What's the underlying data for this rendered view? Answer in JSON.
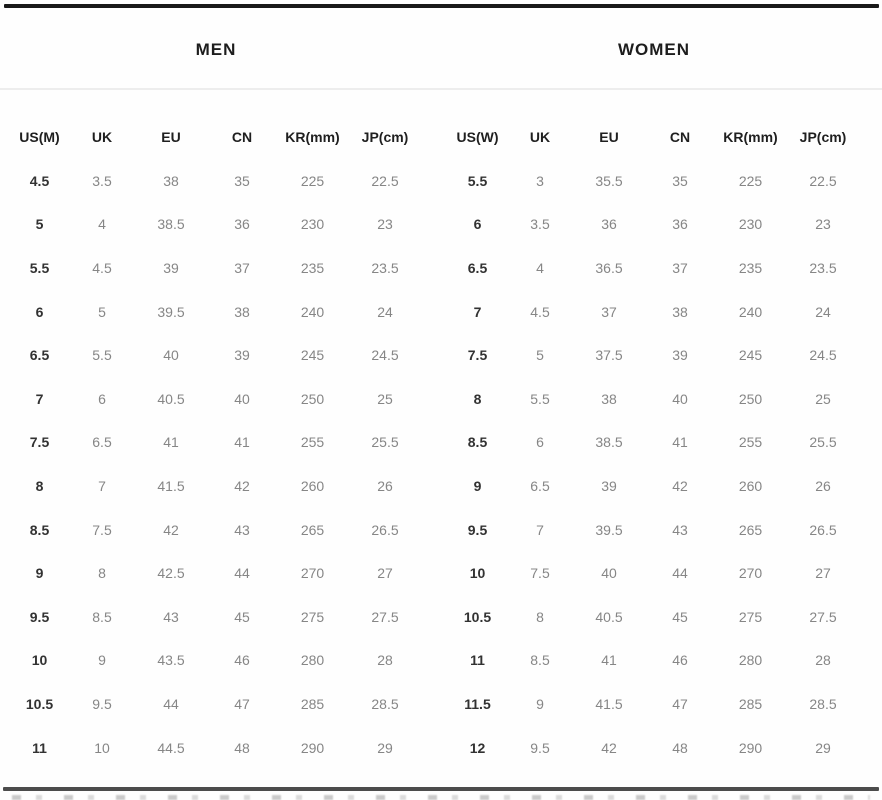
{
  "style": {
    "background": "#fefefe",
    "top_rule_color": "#191919",
    "bottom_rule_color": "#4c4c4c",
    "divider_color": "#ededed",
    "title_color": "#1d1d1d",
    "header_text_color": "#1f1f1f",
    "primary_column_color": "#323232",
    "data_text_color": "#868686"
  },
  "chart_data": [
    {
      "type": "table",
      "title": "MEN",
      "columns": [
        "US(M)",
        "UK",
        "EU",
        "CN",
        "KR(mm)",
        "JP(cm)"
      ],
      "rows": [
        [
          "4.5",
          "3.5",
          "38",
          "35",
          "225",
          "22.5"
        ],
        [
          "5",
          "4",
          "38.5",
          "36",
          "230",
          "23"
        ],
        [
          "5.5",
          "4.5",
          "39",
          "37",
          "235",
          "23.5"
        ],
        [
          "6",
          "5",
          "39.5",
          "38",
          "240",
          "24"
        ],
        [
          "6.5",
          "5.5",
          "40",
          "39",
          "245",
          "24.5"
        ],
        [
          "7",
          "6",
          "40.5",
          "40",
          "250",
          "25"
        ],
        [
          "7.5",
          "6.5",
          "41",
          "41",
          "255",
          "25.5"
        ],
        [
          "8",
          "7",
          "41.5",
          "42",
          "260",
          "26"
        ],
        [
          "8.5",
          "7.5",
          "42",
          "43",
          "265",
          "26.5"
        ],
        [
          "9",
          "8",
          "42.5",
          "44",
          "270",
          "27"
        ],
        [
          "9.5",
          "8.5",
          "43",
          "45",
          "275",
          "27.5"
        ],
        [
          "10",
          "9",
          "43.5",
          "46",
          "280",
          "28"
        ],
        [
          "10.5",
          "9.5",
          "44",
          "47",
          "285",
          "28.5"
        ],
        [
          "11",
          "10",
          "44.5",
          "48",
          "290",
          "29"
        ]
      ]
    },
    {
      "type": "table",
      "title": "WOMEN",
      "columns": [
        "US(W)",
        "UK",
        "EU",
        "CN",
        "KR(mm)",
        "JP(cm)"
      ],
      "rows": [
        [
          "5.5",
          "3",
          "35.5",
          "35",
          "225",
          "22.5"
        ],
        [
          "6",
          "3.5",
          "36",
          "36",
          "230",
          "23"
        ],
        [
          "6.5",
          "4",
          "36.5",
          "37",
          "235",
          "23.5"
        ],
        [
          "7",
          "4.5",
          "37",
          "38",
          "240",
          "24"
        ],
        [
          "7.5",
          "5",
          "37.5",
          "39",
          "245",
          "24.5"
        ],
        [
          "8",
          "5.5",
          "38",
          "40",
          "250",
          "25"
        ],
        [
          "8.5",
          "6",
          "38.5",
          "41",
          "255",
          "25.5"
        ],
        [
          "9",
          "6.5",
          "39",
          "42",
          "260",
          "26"
        ],
        [
          "9.5",
          "7",
          "39.5",
          "43",
          "265",
          "26.5"
        ],
        [
          "10",
          "7.5",
          "40",
          "44",
          "270",
          "27"
        ],
        [
          "10.5",
          "8",
          "40.5",
          "45",
          "275",
          "27.5"
        ],
        [
          "11",
          "8.5",
          "41",
          "46",
          "280",
          "28"
        ],
        [
          "11.5",
          "9",
          "41.5",
          "47",
          "285",
          "28.5"
        ],
        [
          "12",
          "9.5",
          "42",
          "48",
          "290",
          "29"
        ]
      ]
    }
  ]
}
